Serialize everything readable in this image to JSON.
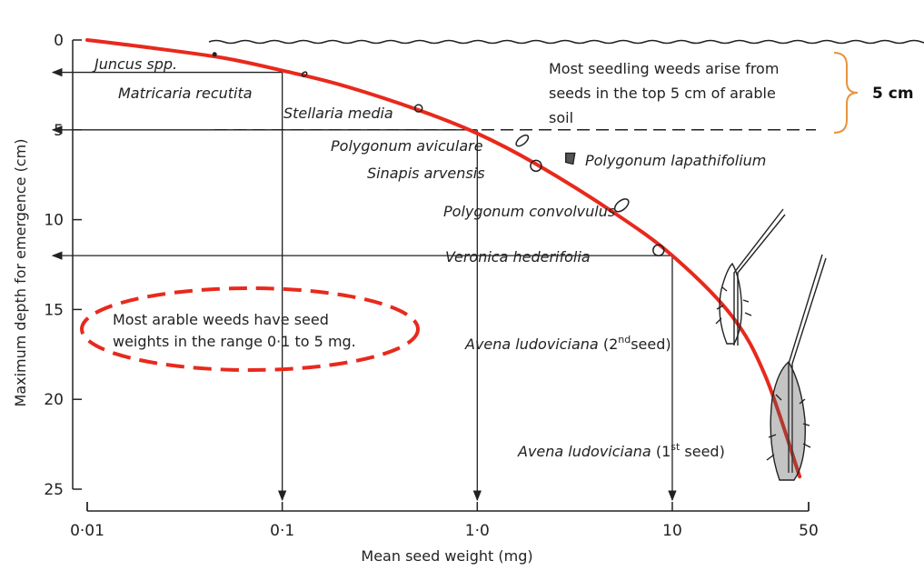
{
  "chart_data": {
    "type": "line",
    "xlabel": "Mean seed weight (mg)",
    "ylabel": "Maximum depth for emergence (cm)",
    "x_scale": "log",
    "xlim": [
      0.01,
      50
    ],
    "ylim": [
      0,
      25
    ],
    "y_inverted": true,
    "x_ticks": [
      {
        "value": 0.01,
        "label": "0·01"
      },
      {
        "value": 0.1,
        "label": "0·1"
      },
      {
        "value": 1.0,
        "label": "1·0"
      },
      {
        "value": 10,
        "label": "10"
      },
      {
        "value": 50,
        "label": "50"
      }
    ],
    "y_ticks": [
      {
        "value": 0,
        "label": "0"
      },
      {
        "value": 5,
        "label": "5"
      },
      {
        "value": 10,
        "label": "10"
      },
      {
        "value": 15,
        "label": "15"
      },
      {
        "value": 20,
        "label": "20"
      },
      {
        "value": 25,
        "label": "25"
      }
    ],
    "series": [
      {
        "color": "#e8291c",
        "x": [
          0.01,
          0.02,
          0.05,
          0.1,
          0.2,
          0.5,
          1.0,
          2.0,
          5.0,
          10,
          20,
          30,
          45
        ],
        "y": [
          0,
          0.4,
          1.0,
          1.7,
          2.5,
          3.9,
          5.2,
          6.9,
          9.6,
          12.0,
          15.3,
          18.7,
          24.3
        ]
      }
    ],
    "guides": [
      {
        "x": 0.1,
        "y": 1.8
      },
      {
        "x": 1.0,
        "y": 5.0
      },
      {
        "x": 10,
        "y": 12.0
      }
    ],
    "species_points": [
      {
        "label": "Juncus spp.",
        "x": 0.045,
        "y": 0.8
      },
      {
        "label": "Matricaria recutita",
        "x": 0.13,
        "y": 1.9
      },
      {
        "label": "Stellaria media",
        "x": 0.5,
        "y": 3.8
      },
      {
        "label": "Polygonum aviculare",
        "x": 1.7,
        "y": 5.6
      },
      {
        "label": "Polygonum lapathifolium",
        "x": 3.0,
        "y": 6.6
      },
      {
        "label": "Sinapis arvensis",
        "x": 2.0,
        "y": 7.0
      },
      {
        "label": "Polygonum convolvulus",
        "x": 5.5,
        "y": 9.2
      },
      {
        "label": "Veronica hederifolia",
        "x": 8.5,
        "y": 11.7
      },
      {
        "label": "Avena ludoviciana (2nd seed)",
        "x": 18,
        "y": 15.5
      },
      {
        "label": "Avena ludoviciana (1st seed)",
        "x": 40,
        "y": 22.5
      }
    ],
    "annotations": {
      "top_note": [
        "Most seedling weeds arise from",
        "seeds in the top 5 cm of arable",
        "soil"
      ],
      "bracket_label": "5 cm",
      "ellipse_note": [
        "Most arable weeds have seed",
        "weights in the range 0·1 to 5 mg."
      ],
      "soil_depth_cm": 5,
      "label_avena2": {
        "pre": "Avena ludoviciana",
        "mid": " (2",
        "sup": "nd",
        "post": "seed)"
      },
      "label_avena1": {
        "pre": "Avena ludoviciana",
        "mid": " (1",
        "sup": "st",
        "post": " seed)"
      }
    },
    "colors": {
      "curve": "#e8291c",
      "ellipse": "#e8291c",
      "bracket": "#e8923c",
      "ink": "#222222"
    }
  }
}
